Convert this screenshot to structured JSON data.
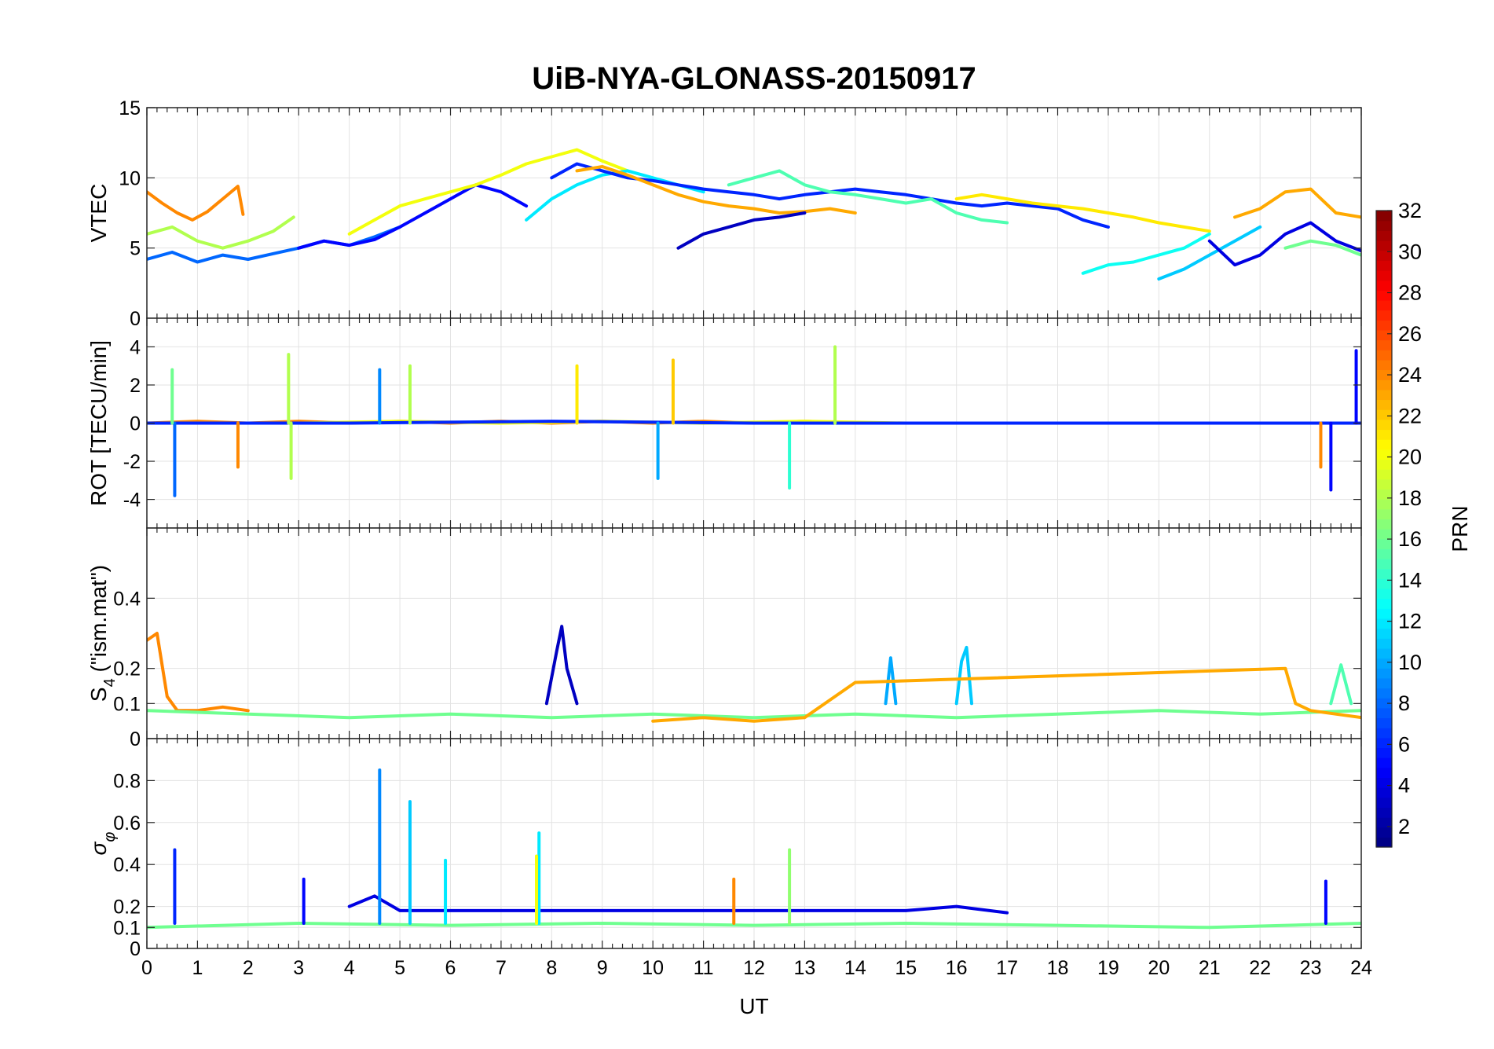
{
  "chart_data": {
    "title": "UiB-NYA-GLONASS-20150917",
    "type": "line",
    "xlabel": "UT",
    "xlim": [
      0,
      24
    ],
    "xticks": [
      "0",
      "1",
      "2",
      "3",
      "4",
      "5",
      "6",
      "7",
      "8",
      "9",
      "10",
      "11",
      "12",
      "13",
      "14",
      "15",
      "16",
      "17",
      "18",
      "19",
      "20",
      "21",
      "22",
      "23",
      "24"
    ],
    "grid": true,
    "panels": [
      {
        "id": "vtec",
        "ylabel": "VTEC",
        "ylim": [
          0,
          15
        ],
        "yticks": [
          "0",
          "5",
          "10",
          "15"
        ],
        "series": [
          {
            "color_prn": 24,
            "x": [
              0.0,
              0.3,
              0.6,
              0.9,
              1.2,
              1.5,
              1.8,
              1.9
            ],
            "y": [
              9.0,
              8.2,
              7.5,
              7.0,
              7.6,
              8.5,
              9.4,
              7.4
            ]
          },
          {
            "color_prn": 18,
            "x": [
              0.0,
              0.5,
              1.0,
              1.5,
              2.0,
              2.5,
              2.9
            ],
            "y": [
              6.0,
              6.5,
              5.5,
              5.0,
              5.5,
              6.2,
              7.2
            ]
          },
          {
            "color_prn": 8,
            "x": [
              0.0,
              0.5,
              1.0,
              1.5,
              2.0,
              2.5,
              3.0,
              3.5,
              4.0,
              4.5,
              5.0
            ],
            "y": [
              4.2,
              4.7,
              4.0,
              4.5,
              4.2,
              4.6,
              5.0,
              5.5,
              5.2,
              5.8,
              6.5
            ]
          },
          {
            "color_prn": 5,
            "x": [
              3.0,
              3.5,
              4.0,
              4.5,
              5.0,
              5.5,
              6.0,
              6.5,
              7.0,
              7.5
            ],
            "y": [
              5.0,
              5.5,
              5.2,
              5.6,
              6.5,
              7.5,
              8.5,
              9.5,
              9.0,
              8.0
            ]
          },
          {
            "color_prn": 20,
            "x": [
              4.0,
              4.5,
              5.0,
              5.5,
              6.0,
              6.5,
              7.0,
              7.5,
              8.0,
              8.5,
              9.0,
              9.5
            ],
            "y": [
              6.0,
              7.0,
              8.0,
              8.5,
              9.0,
              9.5,
              10.2,
              11.0,
              11.5,
              12.0,
              11.2,
              10.5
            ]
          },
          {
            "color_prn": 12,
            "x": [
              7.5,
              8.0,
              8.5,
              9.0,
              9.5,
              10.0,
              10.5,
              11.0
            ],
            "y": [
              7.0,
              8.5,
              9.5,
              10.2,
              10.5,
              10.0,
              9.5,
              9.0
            ]
          },
          {
            "color_prn": 6,
            "x": [
              8.0,
              8.5,
              9.0,
              9.5,
              10.0,
              10.5,
              11.0,
              11.5,
              12.0,
              12.5,
              13.0,
              13.5,
              14.0,
              14.5,
              15.0,
              15.5,
              16.0,
              16.5,
              17.0,
              17.5,
              18.0,
              18.5,
              19.0
            ],
            "y": [
              10.0,
              11.0,
              10.5,
              10.0,
              9.8,
              9.5,
              9.2,
              9.0,
              8.8,
              8.5,
              8.8,
              9.0,
              9.2,
              9.0,
              8.8,
              8.5,
              8.2,
              8.0,
              8.2,
              8.0,
              7.8,
              7.0,
              6.5
            ]
          },
          {
            "color_prn": 23,
            "x": [
              8.5,
              9.0,
              9.5,
              10.0,
              10.5,
              11.0,
              11.5,
              12.0,
              12.5,
              13.0,
              13.5,
              14.0
            ],
            "y": [
              10.5,
              10.8,
              10.2,
              9.5,
              8.8,
              8.3,
              8.0,
              7.8,
              7.5,
              7.6,
              7.8,
              7.5
            ]
          },
          {
            "color_prn": 15,
            "x": [
              11.5,
              12.0,
              12.5,
              13.0,
              13.5,
              14.0,
              14.5,
              15.0,
              15.5,
              16.0,
              16.5,
              17.0
            ],
            "y": [
              9.5,
              10.0,
              10.5,
              9.5,
              9.0,
              8.8,
              8.5,
              8.2,
              8.5,
              7.5,
              7.0,
              6.8
            ]
          },
          {
            "color_prn": 3,
            "x": [
              10.5,
              11.0,
              11.5,
              12.0,
              12.5,
              13.0
            ],
            "y": [
              5.0,
              6.0,
              6.5,
              7.0,
              7.2,
              7.5
            ]
          },
          {
            "color_prn": 21,
            "x": [
              16.0,
              16.5,
              17.0,
              17.5,
              18.0,
              18.5,
              19.0,
              19.5,
              20.0,
              20.5,
              21.0
            ],
            "y": [
              8.5,
              8.8,
              8.5,
              8.2,
              8.0,
              7.8,
              7.5,
              7.2,
              6.8,
              6.5,
              6.2
            ]
          },
          {
            "color_prn": 13,
            "x": [
              18.5,
              19.0,
              19.5,
              20.0,
              20.5,
              21.0
            ],
            "y": [
              3.2,
              3.8,
              4.0,
              4.5,
              5.0,
              6.0
            ]
          },
          {
            "color_prn": 11,
            "x": [
              20.0,
              20.5,
              21.0,
              21.5,
              22.0
            ],
            "y": [
              2.8,
              3.5,
              4.5,
              5.5,
              6.5
            ]
          },
          {
            "color_prn": 4,
            "x": [
              21.0,
              21.5,
              22.0,
              22.5,
              23.0,
              23.5,
              24.0
            ],
            "y": [
              5.5,
              3.8,
              4.5,
              6.0,
              6.8,
              5.5,
              4.8
            ]
          },
          {
            "color_prn": 23,
            "x": [
              21.5,
              22.0,
              22.5,
              23.0,
              23.5,
              24.0
            ],
            "y": [
              7.2,
              7.8,
              9.0,
              9.2,
              7.5,
              7.2
            ]
          },
          {
            "color_prn": 16,
            "x": [
              22.5,
              23.0,
              23.5,
              24.0
            ],
            "y": [
              5.0,
              5.5,
              5.2,
              4.5
            ]
          }
        ]
      },
      {
        "id": "rot",
        "ylabel": "ROT [TECU/min]",
        "ylim": [
          -5.5,
          5.5
        ],
        "yticks": [
          "-4",
          "-2",
          "0",
          "2",
          "4"
        ],
        "series": [
          {
            "color_prn": 24,
            "x": [
              0.0,
              1.0,
              2.0,
              3.0,
              4.0,
              5.0,
              6.0,
              7.0,
              8.0,
              9.0,
              10.0,
              11.0,
              12.0,
              13.0,
              14.0
            ],
            "y": [
              0.0,
              0.1,
              0.0,
              0.1,
              0.0,
              0.1,
              0.0,
              0.1,
              0.0,
              0.1,
              0.0,
              0.1,
              0.0,
              0.1,
              0.0
            ]
          },
          {
            "color_prn": 20,
            "x": [
              3.0,
              5.0,
              7.0,
              9.0,
              11.0,
              13.0,
              15.0,
              17.0,
              19.0,
              21.0
            ],
            "y": [
              0.0,
              0.1,
              0.0,
              0.1,
              0.0,
              0.1,
              0.0,
              0.0,
              0.0,
              0.0
            ]
          },
          {
            "color_prn": 6,
            "x": [
              0.0,
              4.0,
              8.0,
              12.0,
              16.0,
              20.0,
              24.0
            ],
            "y": [
              0.0,
              0.0,
              0.1,
              0.0,
              0.0,
              0.0,
              0.0
            ]
          }
        ],
        "spikes": [
          {
            "color_prn": 8,
            "x": 0.55,
            "y": -3.8
          },
          {
            "color_prn": 16,
            "x": 0.5,
            "y": 2.8
          },
          {
            "color_prn": 24,
            "x": 1.8,
            "y": -2.3
          },
          {
            "color_prn": 18,
            "x": 2.8,
            "y": 3.6
          },
          {
            "color_prn": 18,
            "x": 2.85,
            "y": -2.9
          },
          {
            "color_prn": 9,
            "x": 4.6,
            "y": 2.8
          },
          {
            "color_prn": 18,
            "x": 5.2,
            "y": 3.0
          },
          {
            "color_prn": 21,
            "x": 8.5,
            "y": 3.0
          },
          {
            "color_prn": 22,
            "x": 10.4,
            "y": 3.3
          },
          {
            "color_prn": 10,
            "x": 10.1,
            "y": -2.9
          },
          {
            "color_prn": 14,
            "x": 12.7,
            "y": -3.4
          },
          {
            "color_prn": 18,
            "x": 13.6,
            "y": 4.0
          },
          {
            "color_prn": 24,
            "x": 23.2,
            "y": -2.3
          },
          {
            "color_prn": 5,
            "x": 23.4,
            "y": -3.5
          },
          {
            "color_prn": 5,
            "x": 23.9,
            "y": 3.8
          }
        ]
      },
      {
        "id": "s4",
        "ylabel": "S4 (\"ism.mat\")",
        "ylim": [
          0,
          0.6
        ],
        "yticks": [
          "0",
          "0.1",
          "0.2",
          "0.4"
        ],
        "series": [
          {
            "color_prn": 24,
            "x": [
              0.0,
              0.2,
              0.4,
              0.6,
              1.0,
              1.5,
              2.0
            ],
            "y": [
              0.28,
              0.3,
              0.12,
              0.08,
              0.08,
              0.09,
              0.08
            ]
          },
          {
            "color_prn": 16,
            "x": [
              0.0,
              2.0,
              4.0,
              6.0,
              8.0,
              10.0,
              12.0,
              14.0,
              16.0,
              18.0,
              20.0,
              22.0,
              24.0
            ],
            "y": [
              0.08,
              0.07,
              0.06,
              0.07,
              0.06,
              0.07,
              0.06,
              0.07,
              0.06,
              0.07,
              0.08,
              0.07,
              0.08
            ]
          },
          {
            "color_prn": 3,
            "x": [
              7.9,
              8.1,
              8.2,
              8.3,
              8.5
            ],
            "y": [
              0.1,
              0.25,
              0.32,
              0.2,
              0.1
            ]
          },
          {
            "color_prn": 11,
            "x": [
              16.0,
              16.1,
              16.2,
              16.3
            ],
            "y": [
              0.1,
              0.22,
              0.26,
              0.1
            ]
          },
          {
            "color_prn": 10,
            "x": [
              14.6,
              14.7,
              14.8
            ],
            "y": [
              0.1,
              0.23,
              0.1
            ]
          },
          {
            "color_prn": 23,
            "x": [
              10.0,
              11.0,
              12.0,
              13.0,
              14.0,
              22.5,
              22.7,
              23.0,
              24.0
            ],
            "y": [
              0.05,
              0.06,
              0.05,
              0.06,
              0.16,
              0.2,
              0.1,
              0.08,
              0.06
            ]
          },
          {
            "color_prn": 15,
            "x": [
              23.4,
              23.6,
              23.8
            ],
            "y": [
              0.1,
              0.21,
              0.1
            ]
          }
        ]
      },
      {
        "id": "sigma_phi",
        "ylabel": "σφ",
        "ylim": [
          0,
          1.0
        ],
        "yticks": [
          "0",
          "0.1",
          "0.2",
          "0.4",
          "0.6",
          "0.8"
        ],
        "series": [
          {
            "color_prn": 16,
            "x": [
              0.0,
              3.0,
              6.0,
              9.0,
              12.0,
              15.0,
              18.0,
              21.0,
              24.0
            ],
            "y": [
              0.1,
              0.12,
              0.11,
              0.12,
              0.11,
              0.12,
              0.11,
              0.1,
              0.12
            ]
          },
          {
            "color_prn": 4,
            "x": [
              4.0,
              4.5,
              5.0,
              15.0,
              16.0,
              17.0
            ],
            "y": [
              0.2,
              0.25,
              0.18,
              0.18,
              0.2,
              0.17
            ]
          }
        ],
        "spikes": [
          {
            "color_prn": 6,
            "x": 0.55,
            "y": 0.47
          },
          {
            "color_prn": 9,
            "x": 4.6,
            "y": 0.85
          },
          {
            "color_prn": 11,
            "x": 5.2,
            "y": 0.7
          },
          {
            "color_prn": 12,
            "x": 5.9,
            "y": 0.42
          },
          {
            "color_prn": 12,
            "x": 7.75,
            "y": 0.55
          },
          {
            "color_prn": 20,
            "x": 7.7,
            "y": 0.44
          },
          {
            "color_prn": 17,
            "x": 12.7,
            "y": 0.47
          },
          {
            "color_prn": 5,
            "x": 3.1,
            "y": 0.33
          },
          {
            "color_prn": 24,
            "x": 11.6,
            "y": 0.33
          },
          {
            "color_prn": 5,
            "x": 23.3,
            "y": 0.32
          }
        ]
      }
    ],
    "colorbar": {
      "label": "PRN",
      "colormap": "jet",
      "range": [
        1,
        32
      ],
      "ticks": [
        "2",
        "4",
        "6",
        "8",
        "10",
        "12",
        "14",
        "16",
        "18",
        "20",
        "22",
        "24",
        "26",
        "28",
        "30",
        "32"
      ]
    }
  }
}
